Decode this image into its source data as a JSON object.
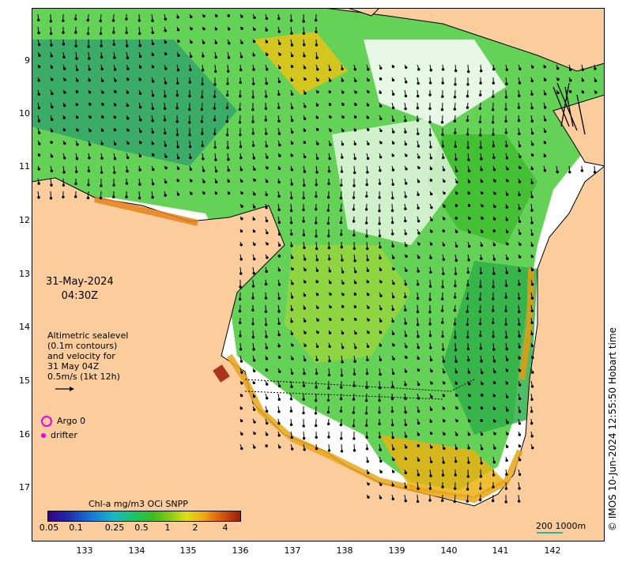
{
  "map": {
    "x_ticks": [
      "133",
      "134",
      "135",
      "136",
      "137",
      "138",
      "139",
      "140",
      "141",
      "142"
    ],
    "y_ticks": [
      "9",
      "10",
      "11",
      "12",
      "13",
      "14",
      "15",
      "16",
      "17"
    ],
    "date": "31-May-2024",
    "time": "04:30Z",
    "legend_lines": [
      "Altimetric sealevel",
      "(0.1m contours)",
      "and velocity for",
      "31 May 04Z",
      "0.5m/s (1kt 12h)"
    ],
    "argo_label": "Argo 0",
    "drifter_label": "drifter",
    "colorbar_title": "Chl-a mg/m3 OCi SNPP",
    "colorbar_ticks": [
      "0.05",
      "0.1",
      "0.25",
      "0.5",
      "1",
      "2",
      "4"
    ],
    "scale_label": "200  1000m",
    "credit": "© IMOS 10-Jun-2024 12:55:50 Hobart time",
    "colors": {
      "land": "#fbcc9c",
      "water_gap": "#ffffff",
      "arrow": "#000000",
      "marker": "#e600e6"
    }
  }
}
